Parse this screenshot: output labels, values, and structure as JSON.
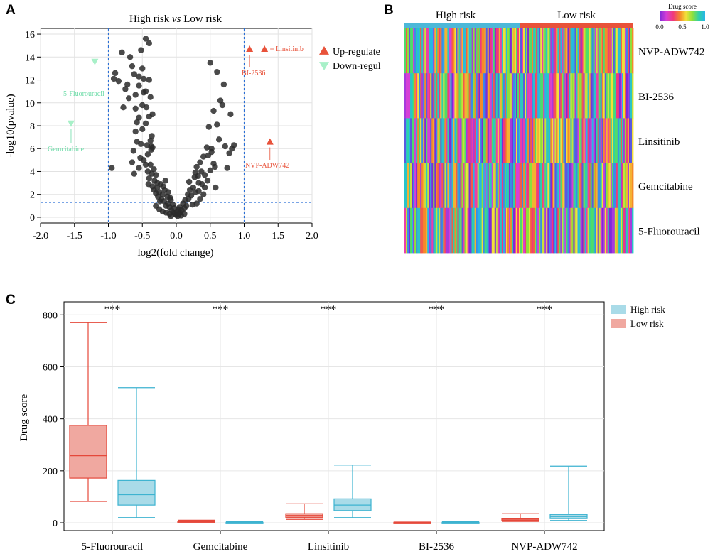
{
  "panels": {
    "a": "A",
    "b": "B",
    "c": "C"
  },
  "chart_data": [
    {
      "type": "scatter",
      "panel": "A",
      "title_parts": [
        "High risk ",
        "vs",
        " Low risk"
      ],
      "xlabel": "log2(fold change)",
      "ylabel": "-log10(pvalue)",
      "xlim": [
        -2.0,
        2.0
      ],
      "ylim": [
        -0.5,
        16.5
      ],
      "xticks": [
        -2.0,
        -1.5,
        -1.0,
        -0.5,
        0.0,
        0.5,
        1.0,
        1.5,
        2.0
      ],
      "yticks": [
        0,
        2,
        4,
        6,
        8,
        10,
        12,
        14,
        16
      ],
      "threshold_x": [
        -1.0,
        1.0
      ],
      "threshold_y": 1.3,
      "grid": true,
      "legend_position": "right",
      "legend": [
        {
          "label": "Up-regulate",
          "color": "#e8523a",
          "marker": "triangle-up"
        },
        {
          "label": "Down-regul",
          "color": "#a8f0c8",
          "marker": "triangle-down"
        }
      ],
      "highlighted": [
        {
          "name": "Linsitinib",
          "x": 1.3,
          "y": 14.7,
          "color": "#e8523a",
          "marker": "triangle-up"
        },
        {
          "name": "BI-2536",
          "x": 1.08,
          "y": 14.7,
          "color": "#e8523a",
          "marker": "triangle-up"
        },
        {
          "name": "NVP-ADW742",
          "x": 1.38,
          "y": 6.6,
          "color": "#e8523a",
          "marker": "triangle-up"
        },
        {
          "name": "5-Fluorouracil",
          "x": -1.2,
          "y": 13.6,
          "color": "#a8f0c8",
          "marker": "triangle-down"
        },
        {
          "name": "Gemcitabine",
          "x": -1.55,
          "y": 8.2,
          "color": "#a8f0c8",
          "marker": "triangle-down"
        }
      ],
      "points": [
        [
          -0.9,
          12.6
        ],
        [
          -0.92,
          12.1
        ],
        [
          -0.95,
          4.3
        ],
        [
          -0.8,
          14.4
        ],
        [
          -0.78,
          9.6
        ],
        [
          -0.72,
          11.6
        ],
        [
          -0.7,
          10.4
        ],
        [
          -0.68,
          14.0
        ],
        [
          -0.65,
          13.2
        ],
        [
          -0.62,
          12.5
        ],
        [
          -0.6,
          10.7
        ],
        [
          -0.6,
          7.5
        ],
        [
          -0.58,
          6.6
        ],
        [
          -0.55,
          11.5
        ],
        [
          -0.55,
          8.7
        ],
        [
          -0.53,
          5.2
        ],
        [
          -0.52,
          14.6
        ],
        [
          -0.5,
          13.0
        ],
        [
          -0.5,
          9.8
        ],
        [
          -0.48,
          12.1
        ],
        [
          -0.45,
          15.6
        ],
        [
          -0.45,
          11.0
        ],
        [
          -0.45,
          8.2
        ],
        [
          -0.43,
          6.3
        ],
        [
          -0.42,
          5.5
        ],
        [
          -0.4,
          15.2
        ],
        [
          -0.4,
          12.0
        ],
        [
          -0.38,
          10.5
        ],
        [
          -0.38,
          6.7
        ],
        [
          -0.37,
          5.9
        ],
        [
          -0.35,
          9.0
        ],
        [
          -0.35,
          6.1
        ],
        [
          -0.6,
          9.5
        ],
        [
          -0.63,
          5.8
        ],
        [
          -0.65,
          4.8
        ],
        [
          -0.62,
          3.8
        ],
        [
          -0.55,
          4.3
        ],
        [
          -0.52,
          6.4
        ],
        [
          -0.5,
          7.7
        ],
        [
          -0.48,
          5.0
        ],
        [
          -0.45,
          4.6
        ],
        [
          -0.42,
          4.0
        ],
        [
          -0.4,
          3.4
        ],
        [
          -0.38,
          4.6
        ],
        [
          -0.37,
          6.2
        ],
        [
          -0.33,
          4.2
        ],
        [
          -0.32,
          3.2
        ],
        [
          -0.3,
          3.7
        ],
        [
          -0.35,
          2.7
        ],
        [
          -0.33,
          2.4
        ],
        [
          -0.3,
          2.1
        ],
        [
          -0.28,
          2.6
        ],
        [
          -0.27,
          1.8
        ],
        [
          -0.25,
          2.2
        ],
        [
          -0.23,
          2.9
        ],
        [
          -0.22,
          1.6
        ],
        [
          -0.2,
          2.0
        ],
        [
          -0.18,
          1.4
        ],
        [
          -0.17,
          2.4
        ],
        [
          -0.15,
          1.0
        ],
        [
          -0.13,
          1.8
        ],
        [
          -0.12,
          1.2
        ],
        [
          -0.1,
          0.9
        ],
        [
          -0.08,
          1.5
        ],
        [
          -0.07,
          0.6
        ],
        [
          -0.05,
          1.1
        ],
        [
          -0.04,
          0.4
        ],
        [
          -0.03,
          0.8
        ],
        [
          -0.02,
          0.3
        ],
        [
          0.0,
          0.2
        ],
        [
          0.01,
          0.5
        ],
        [
          0.02,
          0.1
        ],
        [
          0.03,
          0.7
        ],
        [
          0.04,
          0.3
        ],
        [
          0.05,
          0.9
        ],
        [
          0.06,
          0.4
        ],
        [
          0.08,
          0.6
        ],
        [
          0.1,
          1.2
        ],
        [
          0.12,
          0.8
        ],
        [
          0.13,
          1.5
        ],
        [
          0.15,
          1.0
        ],
        [
          0.17,
          2.0
        ],
        [
          0.18,
          1.6
        ],
        [
          0.2,
          2.4
        ],
        [
          0.22,
          1.9
        ],
        [
          0.25,
          2.6
        ],
        [
          0.27,
          3.5
        ],
        [
          0.28,
          2.2
        ],
        [
          0.3,
          4.4
        ],
        [
          0.32,
          3.6
        ],
        [
          0.33,
          3.0
        ],
        [
          0.35,
          4.8
        ],
        [
          0.37,
          4.0
        ],
        [
          0.4,
          5.3
        ],
        [
          0.42,
          3.7
        ],
        [
          0.45,
          6.1
        ],
        [
          0.47,
          5.4
        ],
        [
          0.48,
          7.9
        ],
        [
          0.5,
          13.5
        ],
        [
          0.52,
          6.0
        ],
        [
          0.55,
          9.3
        ],
        [
          0.57,
          4.4
        ],
        [
          0.6,
          8.1
        ],
        [
          0.6,
          12.7
        ],
        [
          0.63,
          6.8
        ],
        [
          0.65,
          10.2
        ],
        [
          0.68,
          9.8
        ],
        [
          0.7,
          11.6
        ],
        [
          0.72,
          6.2
        ],
        [
          0.75,
          4.3
        ],
        [
          0.78,
          5.6
        ],
        [
          0.8,
          9.0
        ],
        [
          0.82,
          6.0
        ],
        [
          0.85,
          6.3
        ],
        [
          0.52,
          5.7
        ],
        [
          0.55,
          4.7
        ],
        [
          0.58,
          2.6
        ],
        [
          0.4,
          2.0
        ],
        [
          0.35,
          1.6
        ],
        [
          0.3,
          1.2
        ],
        [
          -0.3,
          1.0
        ],
        [
          -0.25,
          0.7
        ],
        [
          -0.2,
          0.5
        ],
        [
          -0.15,
          0.4
        ],
        [
          -0.1,
          0.3
        ],
        [
          -0.08,
          0.1
        ],
        [
          0.07,
          0.15
        ],
        [
          0.12,
          0.3
        ],
        [
          -0.85,
          11.9
        ],
        [
          -0.75,
          11.2
        ],
        [
          -0.55,
          12.3
        ],
        [
          -0.48,
          10.9
        ],
        [
          -0.44,
          9.6
        ],
        [
          -0.4,
          8.8
        ],
        [
          -0.36,
          7.1
        ],
        [
          -0.58,
          8.3
        ],
        [
          -0.41,
          2.9
        ],
        [
          -0.36,
          3.8
        ],
        [
          -0.28,
          3.0
        ],
        [
          -0.24,
          1.4
        ],
        [
          -0.19,
          2.7
        ],
        [
          -0.16,
          3.2
        ],
        [
          -0.12,
          2.2
        ],
        [
          -0.09,
          1.7
        ],
        [
          0.19,
          3.1
        ],
        [
          0.24,
          1.1
        ],
        [
          0.28,
          3.9
        ],
        [
          0.33,
          2.3
        ],
        [
          0.38,
          2.9
        ],
        [
          0.42,
          2.6
        ],
        [
          0.46,
          3.2
        ],
        [
          0.5,
          4.1
        ]
      ]
    },
    {
      "type": "heatmap",
      "panel": "B",
      "groups": [
        {
          "label": "High risk",
          "color": "#4db8d8"
        },
        {
          "label": "Low risk",
          "color": "#e8523a"
        }
      ],
      "rows": [
        "NVP-ADW742",
        "BI-2536",
        "Linsitinib",
        "Gemcitabine",
        "5-Fluorouracil"
      ],
      "columns_per_group": 80,
      "colorbar": {
        "title": "Drug score",
        "ticks": [
          "0.0",
          "0.5",
          "1.0"
        ],
        "range": [
          0,
          1
        ]
      }
    },
    {
      "type": "box",
      "panel": "C",
      "ylabel": "Drug score",
      "ylim": [
        -30,
        850
      ],
      "yticks": [
        0,
        200,
        400,
        600,
        800
      ],
      "categories": [
        "5-Fluorouracil",
        "Gemcitabine",
        "Linsitinib",
        "BI-2536",
        "NVP-ADW742"
      ],
      "significance": [
        "***",
        "***",
        "***",
        "***",
        "***"
      ],
      "grid": true,
      "legend_position": "right",
      "series": [
        {
          "name": "High risk",
          "fill": "#a9dbe8",
          "stroke": "#3db3d0",
          "boxes": [
            {
              "min": 20,
              "q1": 68,
              "median": 108,
              "q3": 163,
              "max": 520
            },
            {
              "min": 0,
              "q1": 0,
              "median": 1,
              "q3": 2,
              "max": 4
            },
            {
              "min": 20,
              "q1": 47,
              "median": 68,
              "q3": 92,
              "max": 222
            },
            {
              "min": 0,
              "q1": 0,
              "median": 1,
              "q3": 2,
              "max": 4
            },
            {
              "min": 9,
              "q1": 16,
              "median": 24,
              "q3": 32,
              "max": 218
            }
          ]
        },
        {
          "name": "Low risk",
          "fill": "#f0a8a0",
          "stroke": "#e5483a",
          "boxes": [
            {
              "min": 82,
              "q1": 172,
              "median": 258,
              "q3": 375,
              "max": 770
            },
            {
              "min": 0,
              "q1": 1,
              "median": 3,
              "q3": 5,
              "max": 10
            },
            {
              "min": 13,
              "q1": 21,
              "median": 28,
              "q3": 35,
              "max": 73
            },
            {
              "min": 0,
              "q1": 0,
              "median": 1,
              "q3": 2,
              "max": 3
            },
            {
              "min": 5,
              "q1": 8,
              "median": 11,
              "q3": 15,
              "max": 35
            }
          ]
        }
      ]
    }
  ]
}
